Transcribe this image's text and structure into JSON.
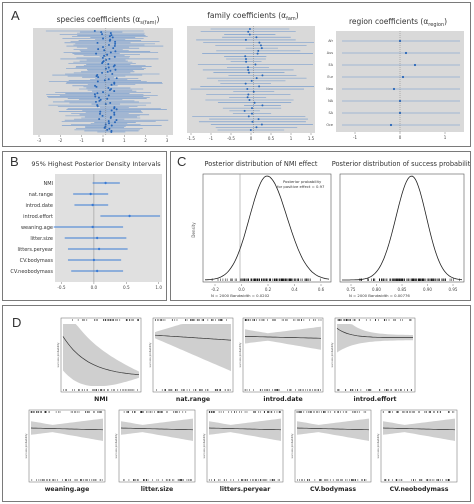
{
  "panelA": {
    "letter": "A",
    "species_title": "species coefficients (α",
    "species_sub": "s(fam)",
    "family_title": "family coefficients (α",
    "family_sub": "fam",
    "region_title": "region coefficients (α",
    "region_sub": "region",
    "species_ticks": [
      "-3",
      "-2",
      "-1",
      "0",
      "1",
      "2",
      "3"
    ],
    "family_ticks": [
      "-1.5",
      "-1",
      "-0.5",
      "0",
      "0.5",
      "1",
      "1.5"
    ],
    "region_ticks": [
      "-1",
      "0",
      "1"
    ],
    "region_labels": [
      "Afr",
      "Aus",
      "EA",
      "Eur",
      "Neo",
      "NA",
      "SA",
      "Oce"
    ]
  },
  "panelB": {
    "letter": "B",
    "title": "95% Highest Posterior Density Intervals",
    "ticks": [
      "-0.5",
      "0.0",
      "0.5",
      "1.0"
    ],
    "rows": [
      {
        "name": "NMI",
        "lo": -0.02,
        "mid": 0.18,
        "hi": 0.4
      },
      {
        "name": "nat.range",
        "lo": -0.32,
        "mid": -0.05,
        "hi": 0.22
      },
      {
        "name": "introd.date",
        "lo": -0.3,
        "mid": -0.02,
        "hi": 0.22
      },
      {
        "name": "introd.effort",
        "lo": 0.1,
        "mid": 0.55,
        "hi": 1.02
      },
      {
        "name": "weaning.age",
        "lo": -0.62,
        "mid": -0.02,
        "hi": 0.45
      },
      {
        "name": "litter.size",
        "lo": -0.45,
        "mid": 0.05,
        "hi": 0.5
      },
      {
        "name": "litters.peryear",
        "lo": -0.4,
        "mid": 0.08,
        "hi": 0.52
      },
      {
        "name": "CV.bodymass",
        "lo": -0.4,
        "mid": 0.0,
        "hi": 0.42
      },
      {
        "name": "CV.neobodymass",
        "lo": -0.35,
        "mid": 0.05,
        "hi": 0.45
      }
    ]
  },
  "panelC": {
    "letter": "C",
    "title_left": "Posterior distribution of NMI effect",
    "title_right": "Posterior distribution of success probability",
    "ylabel": "Density",
    "annotation_line1": "Posterior probability",
    "annotation_line2": "for positive effect = 0.97",
    "left_ticks": [
      "-0.2",
      "0.0",
      "0.2",
      "0.4",
      "0.6"
    ],
    "right_ticks": [
      "0.75",
      "0.80",
      "0.85",
      "0.90",
      "0.95"
    ],
    "left_footer": "N = 2000   Bandwidth = 0.0202",
    "right_footer": "N = 2000   Bandwidth = 0.00776"
  },
  "panelD": {
    "letter": "D",
    "ylabel": "success probability",
    "row1": [
      "NMI",
      "nat.range",
      "introd.date",
      "introd.effort"
    ],
    "row2": [
      "weaning.age",
      "litter.size",
      "litters.peryear",
      "CV.bodymass",
      "CV.neobodymass"
    ]
  },
  "chart_data": [
    {
      "type": "scatter",
      "title": "95% Highest Posterior Density Intervals",
      "categories": [
        "NMI",
        "nat.range",
        "introd.date",
        "introd.effort",
        "weaning.age",
        "litter.size",
        "litters.peryear",
        "CV.bodymass",
        "CV.neobodymass"
      ],
      "values": [
        0.18,
        -0.05,
        -0.02,
        0.55,
        -0.02,
        0.05,
        0.08,
        0.0,
        0.05
      ],
      "xlim": [
        -0.6,
        1.05
      ]
    }
  ]
}
